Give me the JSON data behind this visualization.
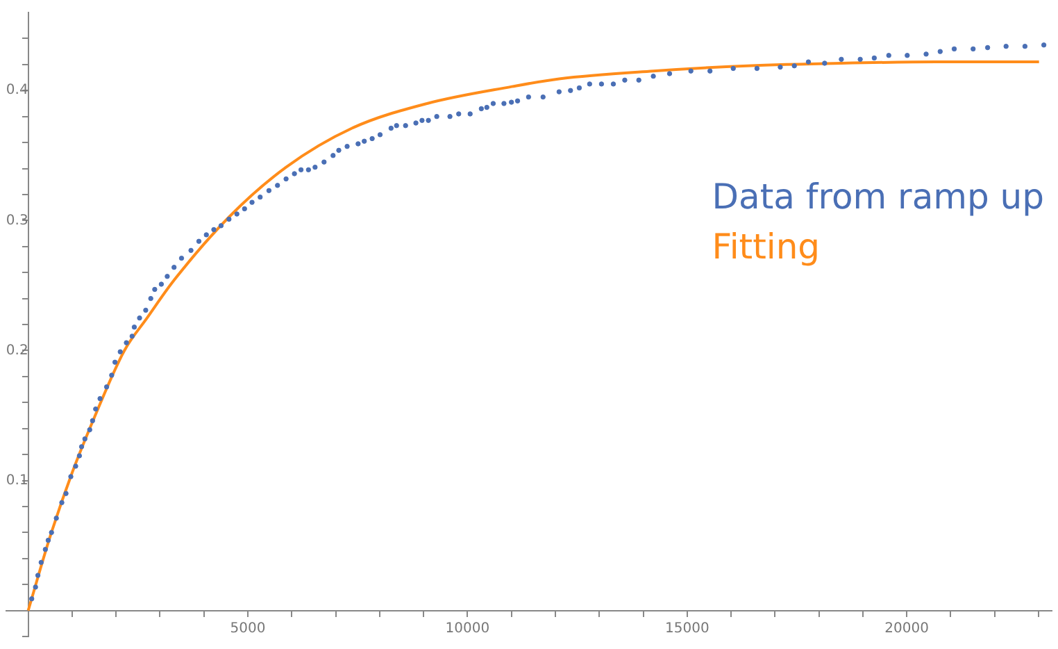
{
  "chart_data": {
    "type": "scatter",
    "legend": "right",
    "marker": "circle",
    "grid": false,
    "xlim": [
      -500,
      23300
    ],
    "ylim": [
      -0.02,
      0.46
    ],
    "xticks": [
      {
        "value": 1000,
        "label": null
      },
      {
        "value": 2000,
        "label": null
      },
      {
        "value": 3000,
        "label": null
      },
      {
        "value": 4000,
        "label": null
      },
      5000,
      {
        "value": 6000,
        "label": null
      },
      {
        "value": 7000,
        "label": null
      },
      {
        "value": 8000,
        "label": null
      },
      {
        "value": 9000,
        "label": null
      },
      10000,
      {
        "value": 11000,
        "label": null
      },
      {
        "value": 12000,
        "label": null
      },
      {
        "value": 13000,
        "label": null
      },
      {
        "value": 14000,
        "label": null
      },
      15000,
      {
        "value": 16000,
        "label": null
      },
      {
        "value": 17000,
        "label": null
      },
      {
        "value": 18000,
        "label": null
      },
      {
        "value": 19000,
        "label": null
      },
      20000,
      {
        "value": 21000,
        "label": null
      },
      {
        "value": 22000,
        "label": null
      },
      {
        "value": 23000,
        "label": null
      }
    ],
    "yticks": [
      {
        "value": -0.02,
        "label": null
      },
      {
        "value": 0.02,
        "label": null
      },
      {
        "value": 0.04,
        "label": null
      },
      {
        "value": 0.06,
        "label": null
      },
      {
        "value": 0.08,
        "label": null
      },
      0.1,
      {
        "value": 0.12,
        "label": null
      },
      {
        "value": 0.14,
        "label": null
      },
      {
        "value": 0.16,
        "label": null
      },
      {
        "value": 0.18,
        "label": null
      },
      0.2,
      {
        "value": 0.22,
        "label": null
      },
      {
        "value": 0.24,
        "label": null
      },
      {
        "value": 0.26,
        "label": null
      },
      {
        "value": 0.28,
        "label": null
      },
      0.3,
      {
        "value": 0.32,
        "label": null
      },
      {
        "value": 0.34,
        "label": null
      },
      {
        "value": 0.36,
        "label": null
      },
      {
        "value": 0.38,
        "label": null
      },
      0.4,
      {
        "value": 0.42,
        "label": null
      },
      {
        "value": 0.44,
        "label": null
      }
    ],
    "series": [
      {
        "name": "Data from ramp up",
        "color": "#4a6fb5",
        "x": [
          80,
          166,
          220,
          295,
          390,
          455,
          530,
          640,
          765,
          860,
          970,
          1080,
          1165,
          1215,
          1290,
          1400,
          1465,
          1535,
          1635,
          1785,
          1900,
          1975,
          2095,
          2235,
          2365,
          2415,
          2535,
          2675,
          2790,
          2880,
          3030,
          3165,
          3320,
          3490,
          3705,
          3885,
          4055,
          4225,
          4390,
          4570,
          4750,
          4925,
          5095,
          5280,
          5480,
          5675,
          5870,
          6060,
          6210,
          6380,
          6530,
          6735,
          6940,
          7070,
          7260,
          7510,
          7650,
          7830,
          8010,
          8260,
          8385,
          8590,
          8825,
          8965,
          9110,
          9300,
          9600,
          9800,
          10060,
          10315,
          10440,
          10585,
          10830,
          11000,
          11140,
          11390,
          11720,
          12085,
          12345,
          12545,
          12780,
          13050,
          13320,
          13580,
          13900,
          14230,
          14600,
          15085,
          15520,
          16050,
          16590,
          17120,
          17440,
          17760,
          18130,
          18510,
          18940,
          19260,
          19590,
          20010,
          20440,
          20760,
          21080,
          21510,
          21840,
          22260,
          22690,
          23120
        ],
        "values": [
          0.009,
          0.018,
          0.027,
          0.037,
          0.047,
          0.054,
          0.06,
          0.071,
          0.083,
          0.09,
          0.103,
          0.111,
          0.119,
          0.126,
          0.132,
          0.139,
          0.146,
          0.155,
          0.163,
          0.172,
          0.181,
          0.191,
          0.199,
          0.206,
          0.211,
          0.218,
          0.225,
          0.231,
          0.24,
          0.247,
          0.251,
          0.257,
          0.264,
          0.271,
          0.277,
          0.284,
          0.289,
          0.293,
          0.296,
          0.301,
          0.305,
          0.309,
          0.314,
          0.318,
          0.323,
          0.327,
          0.332,
          0.336,
          0.339,
          0.339,
          0.341,
          0.345,
          0.35,
          0.354,
          0.357,
          0.359,
          0.361,
          0.363,
          0.366,
          0.371,
          0.373,
          0.373,
          0.375,
          0.377,
          0.377,
          0.38,
          0.38,
          0.382,
          0.382,
          0.386,
          0.387,
          0.39,
          0.39,
          0.391,
          0.392,
          0.395,
          0.395,
          0.399,
          0.4,
          0.402,
          0.405,
          0.405,
          0.405,
          0.408,
          0.408,
          0.411,
          0.413,
          0.415,
          0.415,
          0.417,
          0.417,
          0.418,
          0.419,
          0.422,
          0.421,
          0.424,
          0.424,
          0.425,
          0.427,
          0.427,
          0.428,
          0.43,
          0.432,
          0.432,
          0.433,
          0.434,
          0.434,
          0.435
        ]
      },
      {
        "name": "Fitting",
        "type": "line",
        "marker": "none",
        "color": "#ff8c1a",
        "x": [
          0,
          500,
          1000,
          1500,
          2190,
          2705,
          3295,
          4580,
          5870,
          7370,
          9080,
          11010,
          12085,
          14230,
          16370,
          18510,
          20660,
          23010
        ],
        "values": [
          0,
          0.057,
          0.106,
          0.148,
          0.2,
          0.225,
          0.253,
          0.303,
          0.341,
          0.371,
          0.39,
          0.403,
          0.409,
          0.415,
          0.419,
          0.421,
          0.422,
          0.422
        ]
      }
    ]
  }
}
